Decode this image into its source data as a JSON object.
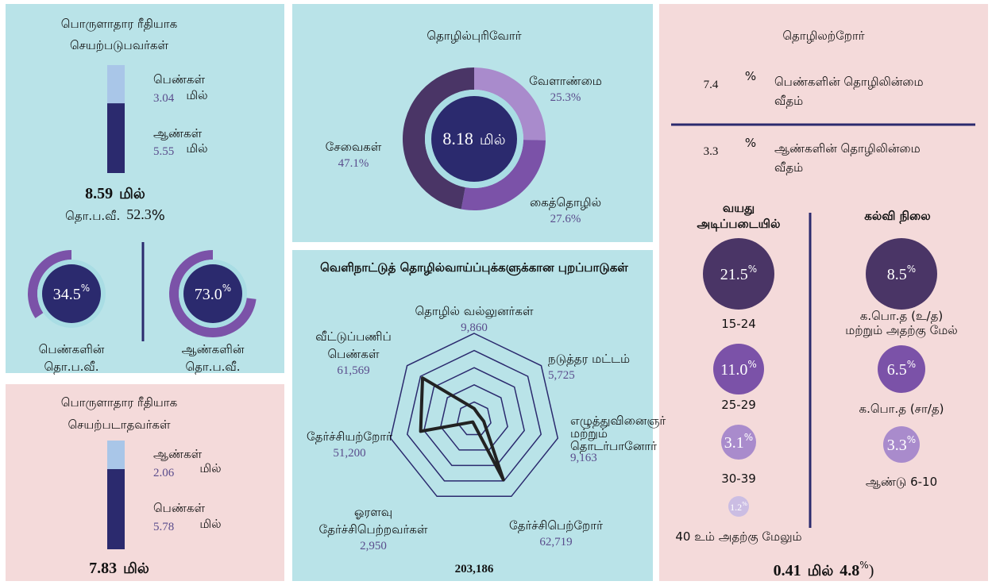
{
  "active": {
    "title": [
      "பொருளாதார ரீதியாக",
      "செயற்படுபவர்கள்"
    ],
    "female": {
      "label": "பெண்கள்",
      "value": 3.04,
      "unit": "மில்"
    },
    "male": {
      "label": "ஆண்கள்",
      "value": 5.55,
      "unit": "மில்"
    },
    "total": {
      "value": 8.59,
      "unit": "மில்"
    },
    "lfpr": {
      "label": "தொ.ப.வீ.",
      "value": 52.3,
      "symbol": "%"
    },
    "female_lfpr": {
      "value": 34.5,
      "symbol": "%",
      "label": [
        "பெண்களின்",
        "தொ.ப.வீ."
      ]
    },
    "male_lfpr": {
      "value": {
        "value": 73,
        "label": "73.0"
      },
      "symbol": "%",
      "label": [
        "ஆண்களின்",
        "தொ.ப.வீ."
      ]
    }
  },
  "inactive": {
    "title": [
      "பொருளாதார ரீதியாக",
      "செயற்படாதவர்கள்"
    ],
    "male": {
      "label": "ஆண்கள்",
      "value": 2.06,
      "unit": "மில்"
    },
    "female": {
      "label": "பெண்கள்",
      "value": 5.78,
      "unit": "மில்"
    },
    "total": {
      "value": 7.83,
      "unit": "மில்"
    }
  },
  "employed": {
    "title": "தொழில்புரிவோர்",
    "total": {
      "value": 8.18,
      "unit": "மில்"
    },
    "sectors": [
      {
        "name": "வேளாண்மை",
        "value": 25.3,
        "symbol": "%",
        "color": "#a98bcc"
      },
      {
        "name": "கைத்தொழில்",
        "value": 27.6,
        "symbol": "%",
        "color": "#7b52a8"
      },
      {
        "name": "சேவைகள்",
        "value": 47.1,
        "symbol": "%",
        "color": "#4a3566"
      }
    ]
  },
  "departures": {
    "title": "வெளிநாட்டுத் தொழில்வாய்ப்புக்களுக்கான புறப்பாடுகள்",
    "total": "203,186",
    "axes": [
      {
        "name": [
          "தொழில் வல்லுனர்கள்"
        ],
        "value": {
          "value": 9860,
          "label": "9,860"
        }
      },
      {
        "name": [
          "நடுத்தர மட்டம்"
        ],
        "value": {
          "value": 5725,
          "label": "5,725"
        }
      },
      {
        "name": [
          "எழுத்துவினைஞர்",
          "மற்றும்",
          "தொடர்பானோர்"
        ],
        "value": {
          "value": 9163,
          "label": "9,163"
        }
      },
      {
        "name": [
          "தேர்ச்சிபெற்றோர்"
        ],
        "value": {
          "value": 62719,
          "label": "62,719"
        }
      },
      {
        "name": [
          "ஓரளவு",
          "தேர்ச்சிபெற்றவர்கள்"
        ],
        "value": {
          "value": 2950,
          "label": "2,950"
        }
      },
      {
        "name": [
          "தேர்ச்சியற்றோர்"
        ],
        "value": {
          "value": 51200,
          "label": "51,200"
        }
      },
      {
        "name": [
          "வீட்டுப்பணிப்",
          "பெண்கள்"
        ],
        "value": {
          "value": 61569,
          "label": "61,569"
        }
      }
    ]
  },
  "unemployed": {
    "title": "தொழிலற்றோர்",
    "female": {
      "value": 7.4,
      "symbol": "%",
      "label": [
        "பெண்களின் தொழிலின்மை",
        "வீதம்"
      ]
    },
    "male": {
      "value": 3.3,
      "symbol": "%",
      "label": [
        "ஆண்களின் தொழிலின்மை",
        "வீதம்"
      ]
    },
    "age_title": [
      "வயது",
      "அடிப்படையில்"
    ],
    "age": [
      {
        "value": 21.5,
        "label": "15-24",
        "color": "#4a3566"
      },
      {
        "value": {
          "value": 11,
          "label": "11.0"
        },
        "label": "25-29",
        "color": "#7b52a8"
      },
      {
        "value": 3.1,
        "label": "30-39",
        "color": "#a98bcc"
      },
      {
        "value": 1.2,
        "label": "40 உம் அதற்கு மேலும்",
        "color": "#cbbde3"
      }
    ],
    "edu_title": "கல்வி நிலை",
    "edu": [
      {
        "value": 8.5,
        "label": [
          "க.பொ.த (உ/த)",
          "மற்றும் அதற்கு மேல்"
        ],
        "color": "#4a3566"
      },
      {
        "value": 6.5,
        "label": [
          "க.பொ.த (சா/த)"
        ],
        "color": "#7b52a8"
      },
      {
        "value": 3.3,
        "label": [
          "ஆண்டு 6-10"
        ],
        "color": "#a98bcc"
      }
    ],
    "symbol": "%",
    "total": {
      "value": 0.41,
      "unit": "மில்",
      "share": 4.8,
      "symbol": "%"
    }
  }
}
